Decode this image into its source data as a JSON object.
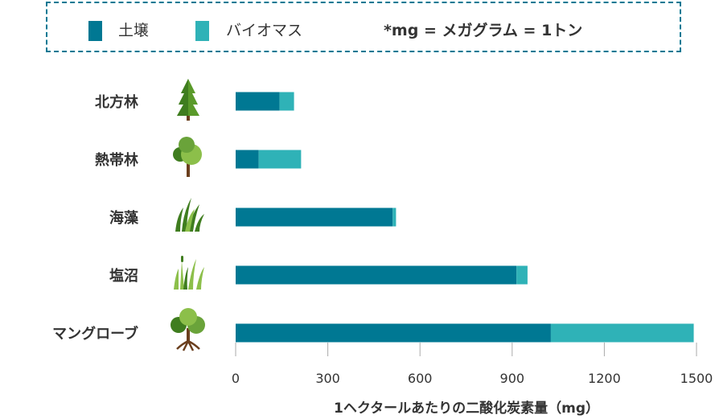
{
  "legend": {
    "soil": "土壌",
    "biomass": "バイオマス",
    "note": "*mg = メガグラム = 1トン"
  },
  "colors": {
    "soil": "#007893",
    "biomass": "#2fb2b7",
    "frame": "#007893"
  },
  "chart_data": {
    "type": "bar",
    "orientation": "horizontal",
    "stacked": true,
    "categories": [
      "北方林",
      "熱帯林",
      "海藻",
      "塩沼",
      "マングローブ"
    ],
    "category_icons": [
      "conifer-tree-icon",
      "broadleaf-tree-icon",
      "seagrass-icon",
      "salt-marsh-grass-icon",
      "mangrove-tree-icon"
    ],
    "series": [
      {
        "name": "土壌",
        "values": [
          143,
          75,
          511,
          914,
          1026
        ]
      },
      {
        "name": "バイオマス",
        "values": [
          47,
          138,
          11,
          36,
          465
        ]
      }
    ],
    "xlabel": "1ヘクタールあたりの二酸化炭素量（mg）",
    "xlim": [
      0,
      1500
    ],
    "xticks": [
      0,
      300,
      600,
      900,
      1200,
      1500
    ],
    "grid": false,
    "legend_position": "top"
  }
}
